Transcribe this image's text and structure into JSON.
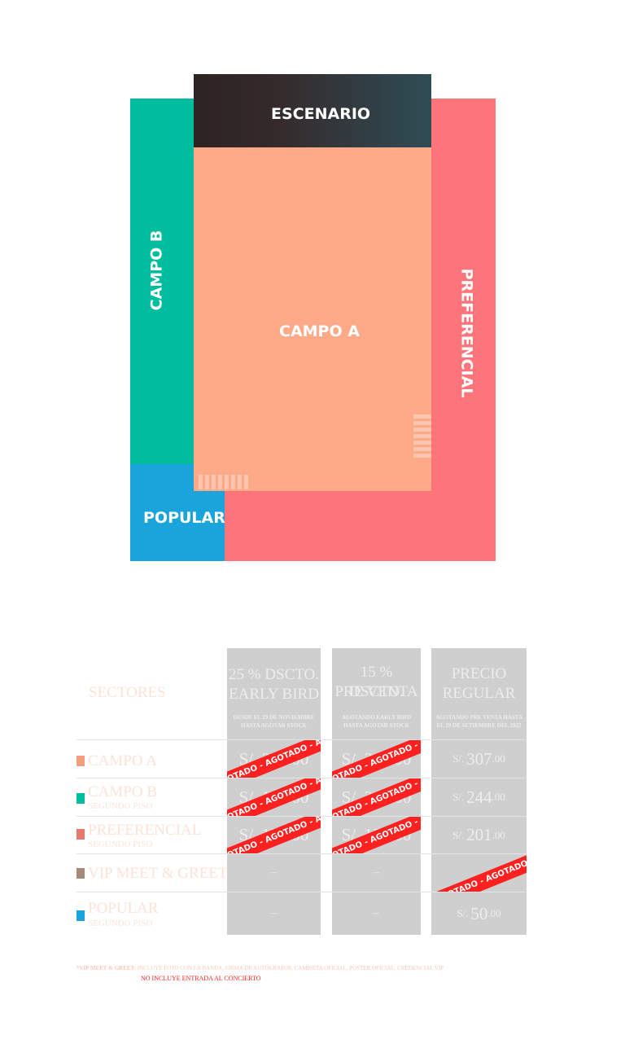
{
  "map": {
    "stage": "ESCENARIO",
    "campo_a": "CAMPO A",
    "campo_b": "CAMPO B",
    "preferencial": "PREFERENCIAL",
    "popular": "POPULAR",
    "colors": {
      "campo_a": "#feaa89",
      "campo_b": "#00bd9d",
      "preferencial": "#fd747b",
      "popular": "#1ba3db",
      "stage": "#2e2323"
    }
  },
  "table": {
    "sectors_header": "SECTORES",
    "columns": [
      {
        "title_line1": "25 % DSCTO.",
        "title_line2": "EARLY BIRD",
        "note_line1": "DESDE EL 29 DE NOVIEMBRE",
        "note_line2": "HASTA AGOTAR STOCK"
      },
      {
        "title_line1": "15 % DSCTO.",
        "title_line2": "PRE VENTA",
        "note_line1": "AGOTANDO EARLY BIRD",
        "note_line2": "HASTA AGOTAR STOCK"
      },
      {
        "title_line1": "PRECIO",
        "title_line2": "REGULAR",
        "note_line1": "AGOTANDO PRE VENTA HASTA",
        "note_line2": "EL 29 DE SETIEMBRE DEL 2025"
      }
    ],
    "sold_out_text": "AGOTADO - AGOTADO - AGOTADO - AGOTADO",
    "currency": "S/.",
    "dash": "–",
    "rows": [
      {
        "name": "CAMPO A",
        "sub": "",
        "color": "#f0a07e",
        "early": "S/. 230.00",
        "pre": "S/. 261.00",
        "regular_int": "307",
        "regular_dec": ".00",
        "early_sold": true,
        "pre_sold": true,
        "regular_sold": false
      },
      {
        "name": "CAMPO B",
        "sub": "SEGUNDO PISO",
        "color": "#00bd9d",
        "early": "S/. 183.00",
        "pre": "S/. 207.00",
        "regular_int": "244",
        "regular_dec": ".00",
        "early_sold": true,
        "pre_sold": true,
        "regular_sold": false
      },
      {
        "name": "PREFERENCIAL",
        "sub": "SEGUNDO PISO",
        "color": "#e8796f",
        "early": "S/. 151.00",
        "pre": "S/. 171.00",
        "regular_int": "201",
        "regular_dec": ".00",
        "early_sold": true,
        "pre_sold": true,
        "regular_sold": false
      },
      {
        "name": "VIP MEET & GREET",
        "sub": "",
        "color": "#a58a7c",
        "early": "–",
        "pre": "–",
        "regular_int": "",
        "regular_dec": "",
        "early_sold": false,
        "pre_sold": false,
        "regular_sold": true
      },
      {
        "name": "POPULAR",
        "sub": "SEGUNDO PISO",
        "color": "#1ba3db",
        "early": "–",
        "pre": "–",
        "regular_int": "50",
        "regular_dec": ".00",
        "early_sold": false,
        "pre_sold": false,
        "regular_sold": false
      }
    ],
    "footnote_label": "*VIP MEET & GREET:",
    "footnote_text": "INCLUYE FOTO CON LA BANDA, FIRMA DE AUTÓGRAFOS, CAMISETA OFICIAL, POSTER OFICIAL, CREDENCIAL VIP",
    "footnote_red": "NO INCLUYE ENTRADA AL CONCIERTO"
  }
}
